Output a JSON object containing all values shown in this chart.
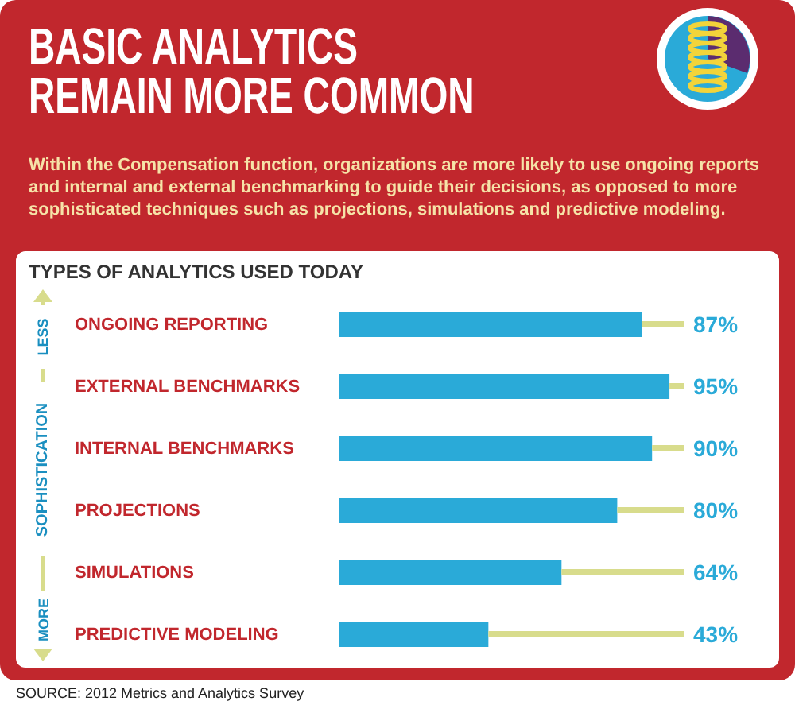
{
  "chart_data": {
    "type": "bar",
    "orientation": "horizontal",
    "title": "BASIC ANALYTICS REMAIN MORE COMMON",
    "subtitle": "Within the Compensation function, organizations are more likely to use ongoing reports and internal and external benchmarking to guide their decisions, as opposed to more sophisticated techniques such as projections, simulations and predictive modeling.",
    "ylabel": "SOPHISTICATION",
    "annotations": [
      "TYPES OF ANALYTICS USED TODAY",
      "LESS",
      "MORE",
      "SOURCE: 2012 Metrics and Analytics Survey"
    ],
    "categories": [
      "ONGOING REPORTING",
      "EXTERNAL BENCHMARKS",
      "INTERNAL BENCHMARKS",
      "PROJECTIONS",
      "SIMULATIONS",
      "PREDICTIVE MODELING"
    ],
    "values": [
      87,
      95,
      90,
      80,
      64,
      43
    ],
    "value_labels": [
      "87%",
      "95%",
      "90%",
      "80%",
      "64%",
      "43%"
    ],
    "color": "#2aaad8",
    "tick_labels": false
  }
}
